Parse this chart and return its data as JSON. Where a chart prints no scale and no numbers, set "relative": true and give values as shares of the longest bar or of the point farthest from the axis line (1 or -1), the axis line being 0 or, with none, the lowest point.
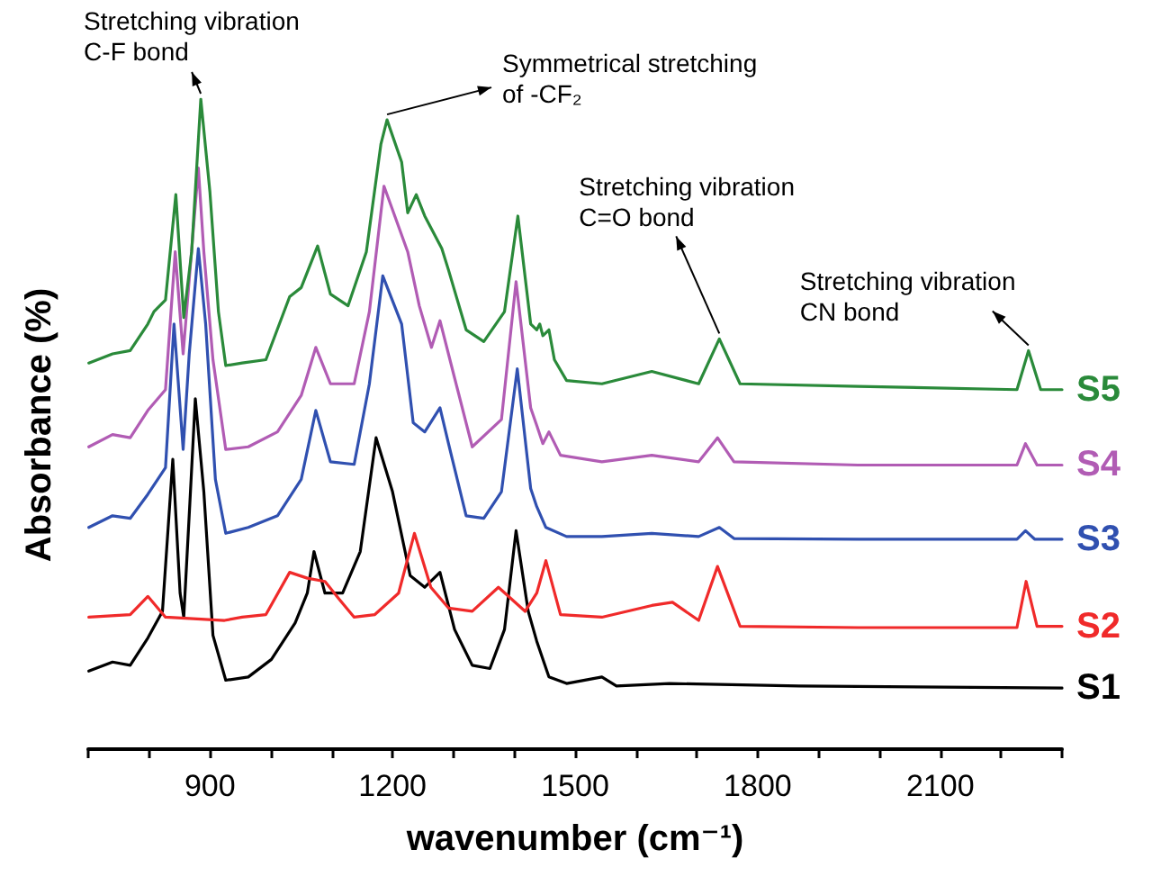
{
  "chart_data": {
    "type": "line",
    "relative": true,
    "xlabel": "wavenumber (cm⁻¹)",
    "ylabel": "Absorbance (%)",
    "xlim": [
      700,
      2300
    ],
    "xticks": [
      {
        "value": 700,
        "label": null
      },
      {
        "value": 800,
        "label": null
      },
      900,
      {
        "value": 1000,
        "label": null
      },
      {
        "value": 1100,
        "label": null
      },
      1200,
      {
        "value": 1300,
        "label": null
      },
      {
        "value": 1400,
        "label": null
      },
      1500,
      {
        "value": 1600,
        "label": null
      },
      {
        "value": 1700,
        "label": null
      },
      1800,
      {
        "value": 1900,
        "label": null
      },
      {
        "value": 2000,
        "label": null
      },
      2100,
      {
        "value": 2200,
        "label": null
      },
      {
        "value": 2300,
        "label": null
      }
    ],
    "grid": false,
    "legend": false,
    "marker": "none",
    "line_style": "solid",
    "series": [
      {
        "name": "S1",
        "color": "#000000",
        "x": [
          701,
          740,
          769,
          798,
          822,
          839,
          851,
          857,
          867,
          876,
          890,
          905,
          926,
          963,
          1001,
          1040,
          1060,
          1071,
          1089,
          1118,
          1147,
          1173,
          1200,
          1229,
          1253,
          1278,
          1302,
          1331,
          1360,
          1384,
          1403,
          1423,
          1437,
          1457,
          1486,
          1544,
          1568,
          1655,
          1868,
          2300
        ],
        "values": [
          0.12,
          0.134,
          0.129,
          0.171,
          0.212,
          0.446,
          0.24,
          0.203,
          0.378,
          0.539,
          0.396,
          0.175,
          0.106,
          0.111,
          0.138,
          0.194,
          0.24,
          0.304,
          0.24,
          0.24,
          0.304,
          0.479,
          0.396,
          0.267,
          0.249,
          0.272,
          0.184,
          0.129,
          0.124,
          0.184,
          0.336,
          0.212,
          0.166,
          0.111,
          0.101,
          0.111,
          0.097,
          0.101,
          0.097,
          0.094
        ]
      },
      {
        "name": "S2",
        "color": "#f02a2a",
        "x": [
          701,
          769,
          798,
          827,
          866,
          924,
          953,
          992,
          1031,
          1060,
          1089,
          1113,
          1137,
          1171,
          1210,
          1236,
          1263,
          1292,
          1331,
          1374,
          1418,
          1437,
          1452,
          1476,
          1544,
          1626,
          1660,
          1703,
          1734,
          1771,
          1965,
          2226,
          2241,
          2259,
          2300
        ],
        "values": [
          0.203,
          0.207,
          0.235,
          0.203,
          0.201,
          0.198,
          0.203,
          0.207,
          0.272,
          0.263,
          0.258,
          0.23,
          0.203,
          0.207,
          0.24,
          0.332,
          0.249,
          0.217,
          0.212,
          0.249,
          0.212,
          0.24,
          0.29,
          0.207,
          0.203,
          0.221,
          0.226,
          0.198,
          0.281,
          0.189,
          0.187,
          0.187,
          0.258,
          0.189,
          0.189
        ]
      },
      {
        "name": "S3",
        "color": "#3050b0",
        "x": [
          701,
          740,
          769,
          798,
          827,
          841,
          856,
          866,
          881,
          893,
          909,
          926,
          963,
          1011,
          1050,
          1074,
          1098,
          1137,
          1162,
          1184,
          1215,
          1234,
          1253,
          1278,
          1292,
          1321,
          1350,
          1379,
          1405,
          1427,
          1437,
          1452,
          1486,
          1544,
          1626,
          1703,
          1737,
          1761,
          1965,
          2226,
          2240,
          2255,
          2300
        ],
        "values": [
          0.341,
          0.359,
          0.355,
          0.392,
          0.433,
          0.654,
          0.461,
          0.608,
          0.77,
          0.654,
          0.415,
          0.332,
          0.341,
          0.359,
          0.415,
          0.521,
          0.442,
          0.438,
          0.562,
          0.728,
          0.654,
          0.502,
          0.488,
          0.525,
          0.47,
          0.359,
          0.355,
          0.396,
          0.585,
          0.401,
          0.373,
          0.341,
          0.327,
          0.327,
          0.332,
          0.327,
          0.341,
          0.324,
          0.323,
          0.323,
          0.336,
          0.323,
          0.323
        ]
      },
      {
        "name": "S4",
        "color": "#b15cb4",
        "x": [
          701,
          740,
          769,
          798,
          827,
          843,
          856,
          881,
          890,
          905,
          926,
          963,
          1011,
          1050,
          1074,
          1098,
          1137,
          1162,
          1186,
          1225,
          1244,
          1264,
          1278,
          1302,
          1331,
          1379,
          1403,
          1427,
          1437,
          1447,
          1457,
          1476,
          1544,
          1626,
          1703,
          1734,
          1761,
          1965,
          2226,
          2240,
          2259,
          2300
        ],
        "values": [
          0.465,
          0.484,
          0.479,
          0.521,
          0.553,
          0.765,
          0.608,
          0.894,
          0.765,
          0.599,
          0.461,
          0.465,
          0.488,
          0.544,
          0.618,
          0.562,
          0.562,
          0.673,
          0.866,
          0.765,
          0.682,
          0.618,
          0.659,
          0.571,
          0.465,
          0.507,
          0.719,
          0.525,
          0.498,
          0.47,
          0.488,
          0.452,
          0.442,
          0.452,
          0.442,
          0.479,
          0.442,
          0.437,
          0.437,
          0.47,
          0.437,
          0.437
        ]
      },
      {
        "name": "S5",
        "color": "#2a8a3a",
        "x": [
          701,
          740,
          769,
          798,
          808,
          827,
          844,
          857,
          870,
          885,
          900,
          914,
          926,
          953,
          992,
          1031,
          1050,
          1077,
          1098,
          1127,
          1157,
          1181,
          1191,
          1215,
          1225,
          1239,
          1253,
          1281,
          1292,
          1321,
          1350,
          1384,
          1406,
          1427,
          1437,
          1442,
          1447,
          1457,
          1466,
          1486,
          1544,
          1626,
          1703,
          1737,
          1771,
          1965,
          2226,
          2245,
          2265,
          2300
        ],
        "values": [
          0.594,
          0.608,
          0.613,
          0.654,
          0.673,
          0.691,
          0.853,
          0.664,
          0.765,
          1.0,
          0.857,
          0.673,
          0.59,
          0.594,
          0.599,
          0.696,
          0.71,
          0.774,
          0.7,
          0.682,
          0.765,
          0.931,
          0.968,
          0.903,
          0.825,
          0.853,
          0.82,
          0.77,
          0.737,
          0.645,
          0.627,
          0.673,
          0.82,
          0.654,
          0.645,
          0.654,
          0.636,
          0.645,
          0.599,
          0.567,
          0.562,
          0.581,
          0.562,
          0.631,
          0.562,
          0.558,
          0.553,
          0.613,
          0.553,
          0.553
        ]
      }
    ],
    "annotations": [
      {
        "text": "Stretching vibration\nC-F bond",
        "x": 885,
        "y": 1.0
      },
      {
        "text": "Symmetrical stretching\nof -CF₂",
        "x": 1191,
        "y": 0.968
      },
      {
        "text": "Stretching vibration\nC=O bond",
        "x": 1737,
        "y": 0.631
      },
      {
        "text": "Stretching vibration\nCN bond",
        "x": 2245,
        "y": 0.613
      }
    ]
  }
}
